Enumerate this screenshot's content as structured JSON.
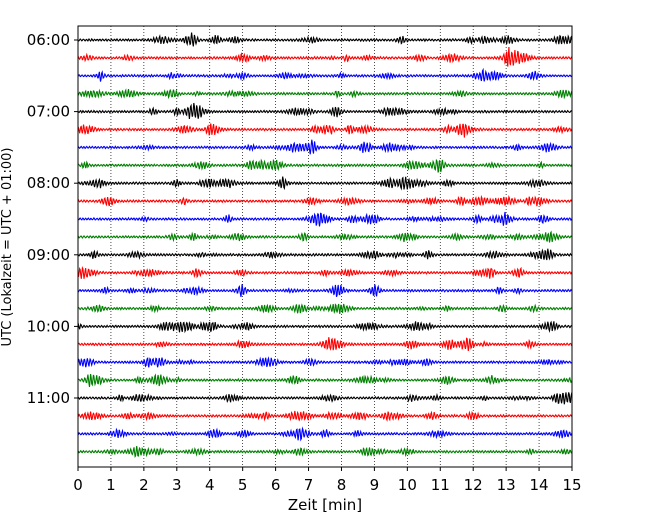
{
  "chart_data": {
    "type": "line",
    "title": "",
    "xlabel": "Zeit  [min]",
    "ylabel": "UTC (Lokalzeit = UTC + 01:00)",
    "xlim": [
      0,
      15
    ],
    "x_ticks": [
      "0",
      "1",
      "2",
      "3",
      "4",
      "5",
      "6",
      "7",
      "8",
      "9",
      "10",
      "11",
      "12",
      "13",
      "14",
      "15"
    ],
    "y_tick_labels": [
      "06:00",
      "07:00",
      "08:00",
      "09:00",
      "10:00",
      "11:00"
    ],
    "grid": "vertical dotted at each minute",
    "trace_interval_min": 15,
    "trace_start": "06:00",
    "trace_count": 24,
    "trace_colors": [
      "#000000",
      "#ff0000",
      "#0000ff",
      "#008000"
    ],
    "legend": "none"
  }
}
